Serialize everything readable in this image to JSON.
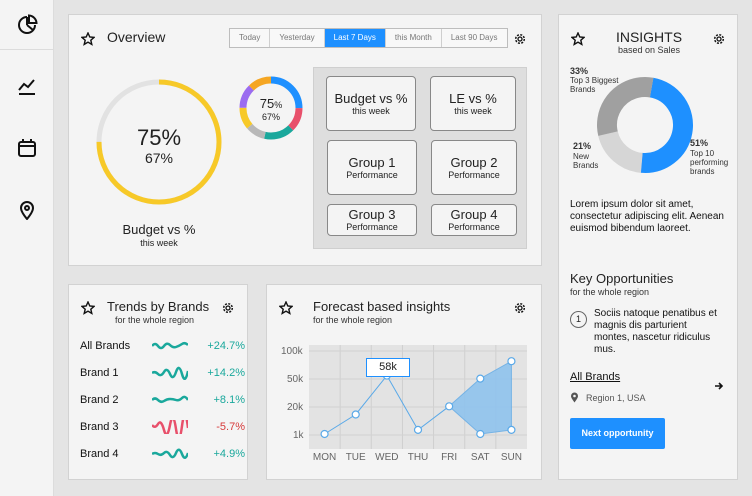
{
  "sidebar": {
    "icons": [
      "logo-pie-icon",
      "trend-chart-icon",
      "calendar-icon",
      "location-pin-icon"
    ]
  },
  "overview": {
    "title": "Overview",
    "tabs": [
      "Today",
      "Yesterday",
      "Last 7 Days",
      "this Month",
      "Last 90 Days"
    ],
    "active_tab": "Last 7 Days",
    "gauge": {
      "primary": "75%",
      "secondary": "67%",
      "label": "Budget vs %",
      "sublabel": "this week",
      "progress": 0.75,
      "color": "#f7c928"
    },
    "mini_donut": {
      "primary": "75",
      "unit": "%",
      "secondary": "67%"
    },
    "buttons": [
      {
        "title": "Budget vs %",
        "sub": "this week"
      },
      {
        "title": "LE vs %",
        "sub": "this week"
      },
      {
        "title": "Group 1",
        "sub": "Performance"
      },
      {
        "title": "Group 2",
        "sub": "Performance"
      },
      {
        "title": "Group 3",
        "sub": "Performance"
      },
      {
        "title": "Group 4",
        "sub": "Performance"
      }
    ]
  },
  "trends": {
    "title": "Trends by Brands",
    "subtitle": "for the whole region",
    "rows": [
      {
        "name": "All Brands",
        "change": "+24.7%",
        "color": "#1aa89c"
      },
      {
        "name": "Brand 1",
        "change": "+14.2%",
        "color": "#1aa89c"
      },
      {
        "name": "Brand 2",
        "change": "+8.1%",
        "color": "#1aa89c"
      },
      {
        "name": "Brand 3",
        "change": "-5.7%",
        "color": "#e8506b"
      },
      {
        "name": "Brand 4",
        "change": "+4.9%",
        "color": "#1aa89c"
      }
    ]
  },
  "forecast": {
    "title": "Forecast based insights",
    "subtitle": "for the whole region",
    "tooltip": "58k",
    "chart_data": {
      "type": "line",
      "categories": [
        "MON",
        "TUE",
        "WED",
        "THU",
        "FRI",
        "SAT",
        "SUN"
      ],
      "y_ticks": [
        "100k",
        "50k",
        "20k",
        "1k"
      ],
      "series": [
        {
          "values": [
            1,
            20,
            58,
            5,
            28,
            55,
            72
          ]
        }
      ],
      "band": {
        "from": "FRI",
        "upper": [
          28,
          55,
          72
        ],
        "lower": [
          28,
          1,
          5
        ]
      },
      "highlight": {
        "category": "WED",
        "label": "58k"
      }
    }
  },
  "insights": {
    "title": "INSIGHTS",
    "subtitle": "based on Sales",
    "chart_data": {
      "type": "pie",
      "slices": [
        {
          "label": "Top 3 Biggest Brands",
          "value": 33,
          "color": "#a0a0a0"
        },
        {
          "label": "New Brands",
          "value": 21,
          "color": "#d6d6d6"
        },
        {
          "label": "Top 10 performing brands",
          "value": 51,
          "color": "#1e90ff"
        }
      ]
    },
    "labels": {
      "top3_pct": "33%",
      "top3_text": "Top 3 Biggest Brands",
      "new_pct": "21%",
      "new_text": "New Brands",
      "top10_pct": "51%",
      "top10_text": "Top 10 performing brands"
    },
    "body": "Lorem ipsum dolor sit amet, consectetur adipiscing elit. Aenean euismod bibendum laoreet.",
    "opps_title": "Key Opportunities",
    "opps_sub": "for the whole region",
    "opp_number": "1",
    "opp_text": "Sociis natoque penatibus et magnis dis parturient montes, nascetur ridiculus mus.",
    "all_brands": "All Brands",
    "region": "Region 1, USA",
    "next_button": "Next opportunity"
  }
}
